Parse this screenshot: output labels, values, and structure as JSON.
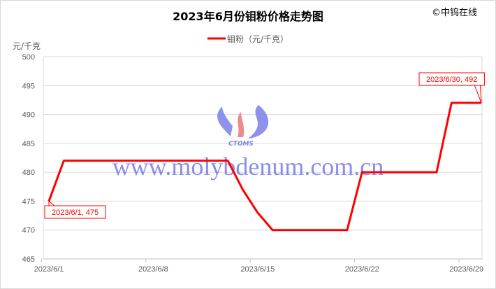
{
  "chart_data": {
    "type": "line",
    "title": "2023年6月份钼粉价格走势图",
    "copyright": "©中钨在线",
    "ylabel": "元/千克",
    "xlabel": "",
    "ylim": [
      465,
      500
    ],
    "yticks": [
      465,
      470,
      475,
      480,
      485,
      490,
      495,
      500
    ],
    "xtick_labels": [
      "2023/6/1",
      "2023/6/8",
      "2023/6/15",
      "2023/6/22",
      "2023/6/29"
    ],
    "grid": "horizontal",
    "legend_position": "top",
    "watermark": "www.molybdenum.com.cn",
    "watermark_logo": "CTOMS",
    "series": [
      {
        "name": "钼粉（元/千克）",
        "color": "#ff0000",
        "x": [
          "2023/6/1",
          "2023/6/2",
          "2023/6/3",
          "2023/6/4",
          "2023/6/5",
          "2023/6/6",
          "2023/6/7",
          "2023/6/8",
          "2023/6/9",
          "2023/6/10",
          "2023/6/11",
          "2023/6/12",
          "2023/6/13",
          "2023/6/14",
          "2023/6/15",
          "2023/6/16",
          "2023/6/17",
          "2023/6/18",
          "2023/6/19",
          "2023/6/20",
          "2023/6/21",
          "2023/6/22",
          "2023/6/23",
          "2023/6/24",
          "2023/6/25",
          "2023/6/26",
          "2023/6/27",
          "2023/6/28",
          "2023/6/29",
          "2023/6/30"
        ],
        "values": [
          475,
          482,
          482,
          482,
          482,
          482,
          482,
          482,
          482,
          482,
          482,
          482,
          482,
          477,
          473,
          470,
          470,
          470,
          470,
          470,
          470,
          480,
          480,
          480,
          480,
          480,
          480,
          492,
          492,
          492
        ]
      }
    ],
    "annotations": [
      {
        "label": "2023/6/1, 475",
        "index": 0
      },
      {
        "label": "2023/6/30, 492",
        "index": 29
      }
    ]
  }
}
